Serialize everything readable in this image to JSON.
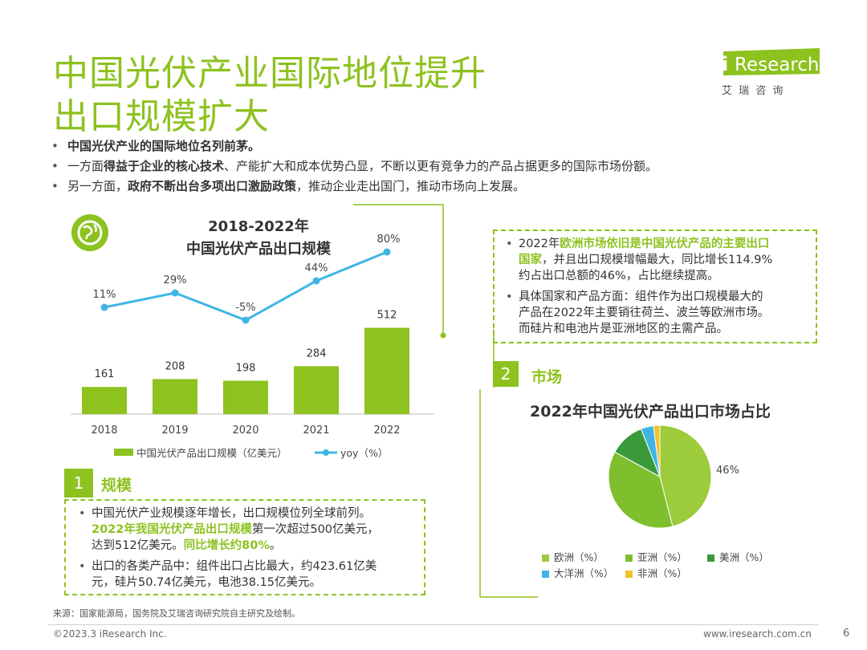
{
  "header": {
    "title_line1": "中国光伏产业国际地位提升",
    "title_line2": "出口规模扩大",
    "logo_i": "i",
    "logo_research": "Research",
    "logo_cn": "艾 瑞 咨 询"
  },
  "intro": {
    "b1": "中国光伏产业的国际地位名列前茅。",
    "b2_pre": "一方面",
    "b2_bold": "得益于企业的核心技术",
    "b2_post": "、产能扩大和成本优势凸显，不断以更有竞争力的产品占据更多的国际市场份额。",
    "b3_pre": "另一方面，",
    "b3_bold": "政府不断出台多项出口激励政策",
    "b3_post": "，推动企业走出国门，推动市场向上发展。"
  },
  "chart_data": [
    {
      "type": "bar",
      "title_line1": "2018-2022年",
      "title_line2": "中国光伏产品出口规模",
      "categories": [
        "2018",
        "2019",
        "2020",
        "2021",
        "2022"
      ],
      "series": [
        {
          "name": "中国光伏产品出口规模（亿美元）",
          "type": "bar",
          "values": [
            161,
            208,
            198,
            284,
            512
          ]
        },
        {
          "name": "yoy（%）",
          "type": "line",
          "values": [
            11,
            29,
            -5,
            44,
            80
          ]
        }
      ],
      "value_labels": [
        "161",
        "208",
        "198",
        "284",
        "512"
      ],
      "yoy_labels": [
        "11%",
        "29%",
        "-5%",
        "44%",
        "80%"
      ],
      "legend_position": "bottom",
      "colors": {
        "bar": "#8dc21f",
        "line": "#3fb5e5"
      }
    },
    {
      "type": "pie",
      "title": "2022年中国光伏产品出口市场占比",
      "categories": [
        "欧洲（%）",
        "亚洲（%）",
        "美洲（%）",
        "大洋洲（%）",
        "非洲（%）"
      ],
      "values": [
        46,
        37,
        11,
        4,
        2
      ],
      "visible_label": "46%",
      "colors": [
        "#9ccb3b",
        "#7fbf2e",
        "#3a9a3a",
        "#3fb5e5",
        "#f2c12e"
      ],
      "legend_position": "bottom"
    }
  ],
  "section1": {
    "num": "1",
    "title": "规模",
    "p1_l1": "中国光伏产业规模逐年增长，出口规模位列全球前列。",
    "p1_l2_hl": "2022年我国光伏产品出口规模",
    "p1_l2_rest": "第一次超过500亿美元，",
    "p1_l3_pre": "达到512亿美元。",
    "p1_l3_hl": "同比增长约80%",
    "p1_l3_post": "。",
    "p2_l1": "出口的各类产品中：组件出口占比最大，约423.61亿美",
    "p2_l2": "元，硅片50.74亿美元，电池38.15亿美元。"
  },
  "rightbox": {
    "p1_l1_pre": "2022年",
    "p1_l1_hl": "欧洲市场依旧是中国光伏产品的主要出口",
    "p1_l2_hl": "国家",
    "p1_l2_rest": "，并且出口规模增幅最大，同比增长114.9%",
    "p1_l3": "约占出口总额的46%，占比继续提高。",
    "p2_l1": "具体国家和产品方面：组件作为出口规模最大的",
    "p2_l2": "产品在2022年主要销往荷兰、波兰等欧洲市场。",
    "p2_l3": "而硅片和电池片是亚洲地区的主需产品。"
  },
  "section2": {
    "num": "2",
    "title": "市场"
  },
  "footer": {
    "source": "来源：国家能源局，国务院及艾瑞咨询研究院自主研究及绘制。",
    "copyright": "©2023.3 iResearch Inc.",
    "website": "www.iresearch.com.cn",
    "page": "6"
  }
}
